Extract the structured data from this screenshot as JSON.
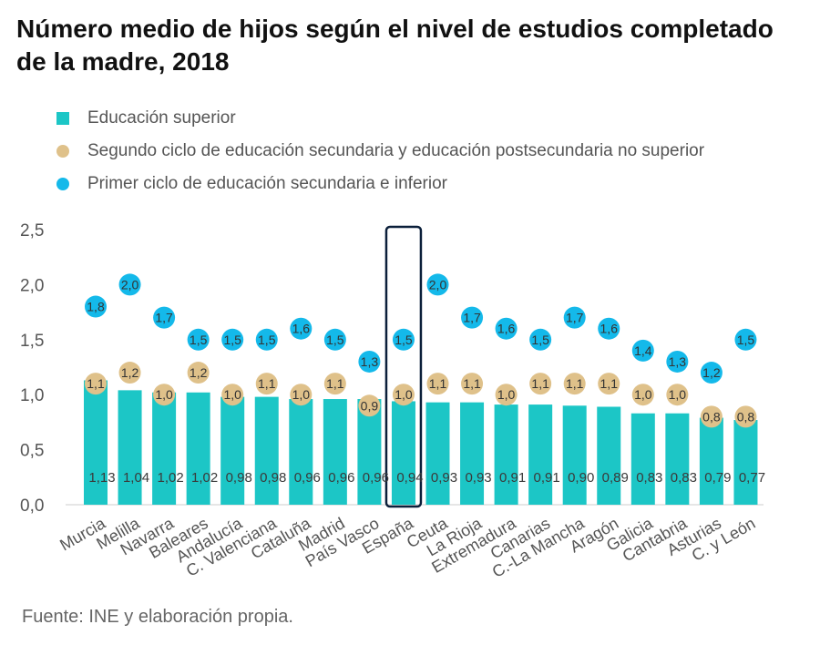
{
  "title": "Número medio de hijos según el nivel de estudios completado de la madre, 2018",
  "source": "Fuente: INE y elaboración propia.",
  "colors": {
    "superior": "#1cc6c6",
    "secundaria": "#dfc18a",
    "primer": "#14b9ea",
    "highlight": "#0b1f3a",
    "axis_text": "#555555"
  },
  "chart_data": {
    "type": "bar",
    "ylim": [
      0,
      2.5
    ],
    "yticks": [
      "0,0",
      "0,5",
      "1,0",
      "1,5",
      "2,0",
      "2,5"
    ],
    "highlight_category": "España",
    "categories": [
      "Murcia",
      "Melilla",
      "Navarra",
      "Baleares",
      "Andalucía",
      "C. Valenciana",
      "Cataluña",
      "Madrid",
      "País Vasco",
      "España",
      "Ceuta",
      "La Rioja",
      "Extremadura",
      "Canarias",
      "C.-La Mancha",
      "Aragón",
      "Galicia",
      "Cantabria",
      "Asturias",
      "C. y León"
    ],
    "series": [
      {
        "name": "Educación superior",
        "marker": "bar",
        "values": [
          1.13,
          1.04,
          1.02,
          1.02,
          0.98,
          0.98,
          0.96,
          0.96,
          0.96,
          0.94,
          0.93,
          0.93,
          0.91,
          0.91,
          0.9,
          0.89,
          0.83,
          0.83,
          0.79,
          0.77
        ],
        "labels": [
          "1,13",
          "1,04",
          "1,02",
          "1,02",
          "0,98",
          "0,98",
          "0,96",
          "0,96",
          "0,96",
          "0,94",
          "0,93",
          "0,93",
          "0,91",
          "0,91",
          "0,90",
          "0,89",
          "0,83",
          "0,83",
          "0,79",
          "0,77"
        ]
      },
      {
        "name": "Segundo ciclo de educación secundaria y educación postsecundaria no superior",
        "marker": "circle",
        "values": [
          1.1,
          1.2,
          1.0,
          1.2,
          1.0,
          1.1,
          1.0,
          1.1,
          0.9,
          1.0,
          1.1,
          1.1,
          1.0,
          1.1,
          1.1,
          1.1,
          1.0,
          1.0,
          0.8,
          0.8
        ],
        "labels": [
          "1,1",
          "1,2",
          "1,0",
          "1,2",
          "1,0",
          "1,1",
          "1,0",
          "1,1",
          "0,9",
          "1,0",
          "1,1",
          "1,1",
          "1,0",
          "1,1",
          "1,1",
          "1,1",
          "1,0",
          "1,0",
          "0,8",
          "0,8"
        ]
      },
      {
        "name": "Primer ciclo de educación secundaria e inferior",
        "marker": "circle",
        "values": [
          1.8,
          2.0,
          1.7,
          1.5,
          1.5,
          1.5,
          1.6,
          1.5,
          1.3,
          1.5,
          2.0,
          1.7,
          1.6,
          1.5,
          1.7,
          1.6,
          1.4,
          1.3,
          1.2,
          1.5
        ],
        "labels": [
          "1,8",
          "2,0",
          "1,7",
          "1,5",
          "1,5",
          "1,5",
          "1,6",
          "1,5",
          "1,3",
          "1,5",
          "2,0",
          "1,7",
          "1,6",
          "1,5",
          "1,7",
          "1,6",
          "1,4",
          "1,3",
          "1,2",
          "1,5"
        ]
      }
    ]
  }
}
